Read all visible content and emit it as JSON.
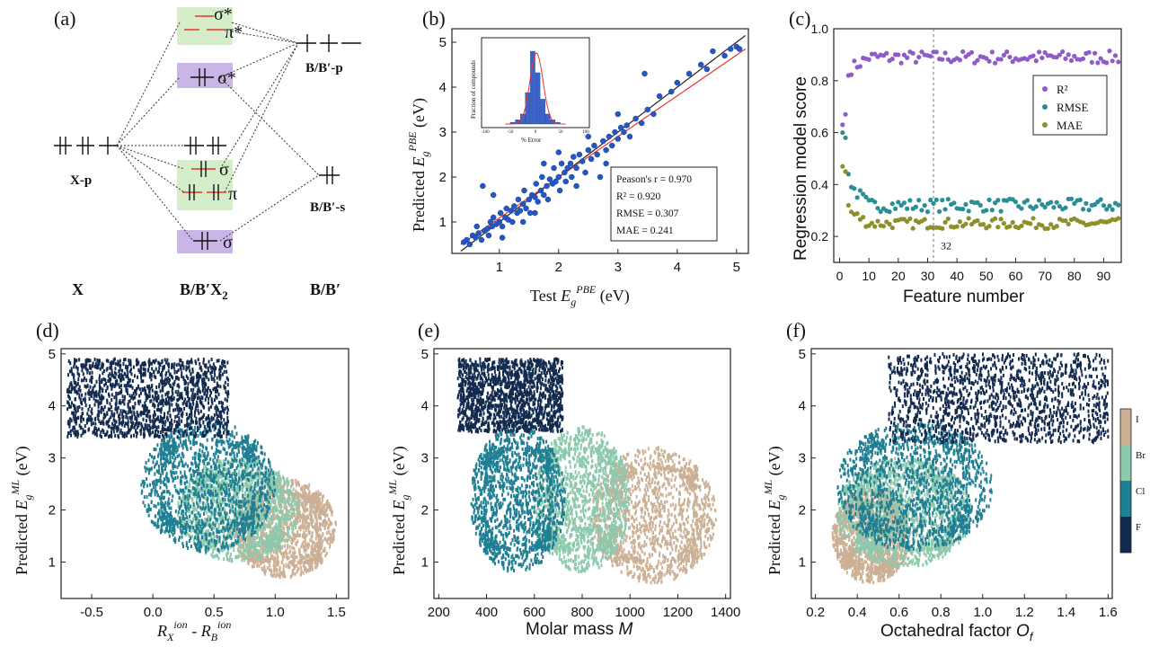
{
  "panel_labels": [
    "(a)",
    "(b)",
    "(c)",
    "(d)",
    "(e)",
    "(f)"
  ],
  "mo_diagram": {
    "col_x": "X",
    "col_bbx2": "B/B′X",
    "col_bbx2_sub": "2",
    "col_bb": "B/B′",
    "x_p": "X-p",
    "bb_p": "B/B′-p",
    "bb_s": "B/B′-s",
    "sigma_star_top": "σ*",
    "pi_star": "π*",
    "sigma_star_mid": "σ*",
    "sigma": "σ",
    "pi": "π",
    "sigma_bottom": "σ",
    "colors": {
      "red": "#e8352a",
      "purple": "#6a3fb5",
      "green_box": "#d5edc8",
      "purple_box": "#c9b6e6"
    }
  },
  "chart_data": [
    {
      "id": "b",
      "type": "scatter",
      "xlabel": "Test E_g^PBE (eV)",
      "ylabel": "Predicted E_g^PBE (eV)",
      "xlim": [
        0.2,
        5.2
      ],
      "ylim": [
        0.3,
        5.3
      ],
      "xticks": [
        1,
        2,
        3,
        4,
        5
      ],
      "yticks": [
        1,
        2,
        3,
        4,
        5
      ],
      "stats": [
        "Peason's r = 0.970",
        "R² = 0.920",
        "RMSE = 0.307",
        "MAE = 0.241"
      ],
      "lines": [
        {
          "name": "ideal",
          "color": "#222222"
        },
        {
          "name": "fit",
          "color": "#e8352a"
        }
      ],
      "point_color": "#2456c4",
      "points": [
        [
          0.4,
          0.55
        ],
        [
          0.45,
          0.6
        ],
        [
          0.5,
          0.5
        ],
        [
          0.55,
          0.7
        ],
        [
          0.6,
          0.65
        ],
        [
          0.62,
          0.9
        ],
        [
          0.65,
          0.75
        ],
        [
          0.7,
          0.6
        ],
        [
          0.72,
          1.8
        ],
        [
          0.75,
          0.8
        ],
        [
          0.8,
          0.85
        ],
        [
          0.82,
          0.7
        ],
        [
          0.85,
          1.0
        ],
        [
          0.88,
          0.9
        ],
        [
          0.9,
          1.1
        ],
        [
          0.95,
          0.95
        ],
        [
          1.0,
          1.0
        ],
        [
          1.02,
          1.2
        ],
        [
          1.05,
          0.9
        ],
        [
          1.1,
          1.1
        ],
        [
          1.12,
          1.3
        ],
        [
          1.15,
          1.05
        ],
        [
          1.2,
          1.25
        ],
        [
          1.22,
          1.0
        ],
        [
          1.25,
          1.35
        ],
        [
          1.3,
          1.2
        ],
        [
          1.32,
          1.5
        ],
        [
          1.35,
          1.25
        ],
        [
          1.4,
          1.4
        ],
        [
          1.42,
          1.7
        ],
        [
          1.45,
          1.3
        ],
        [
          1.5,
          1.5
        ],
        [
          1.52,
          1.2
        ],
        [
          1.55,
          1.6
        ],
        [
          1.6,
          1.55
        ],
        [
          1.62,
          1.85
        ],
        [
          1.65,
          1.45
        ],
        [
          1.7,
          1.7
        ],
        [
          1.72,
          2.0
        ],
        [
          1.75,
          1.6
        ],
        [
          1.8,
          1.8
        ],
        [
          1.82,
          1.5
        ],
        [
          1.85,
          1.95
        ],
        [
          1.9,
          1.85
        ],
        [
          1.92,
          2.2
        ],
        [
          1.95,
          1.9
        ],
        [
          2.0,
          2.0
        ],
        [
          2.02,
          1.7
        ],
        [
          2.05,
          2.3
        ],
        [
          2.1,
          2.1
        ],
        [
          2.12,
          1.9
        ],
        [
          2.15,
          2.2
        ],
        [
          2.2,
          2.3
        ],
        [
          2.22,
          2.0
        ],
        [
          2.25,
          2.45
        ],
        [
          2.3,
          2.2
        ],
        [
          2.35,
          2.5
        ],
        [
          2.4,
          2.35
        ],
        [
          2.45,
          2.1
        ],
        [
          2.5,
          2.6
        ],
        [
          2.55,
          2.4
        ],
        [
          2.6,
          2.7
        ],
        [
          2.65,
          2.5
        ],
        [
          2.7,
          2.0
        ],
        [
          2.75,
          2.8
        ],
        [
          2.8,
          2.6
        ],
        [
          2.85,
          2.9
        ],
        [
          2.9,
          2.7
        ],
        [
          2.95,
          3.0
        ],
        [
          3.0,
          2.85
        ],
        [
          3.05,
          3.1
        ],
        [
          3.1,
          3.0
        ],
        [
          3.15,
          3.15
        ],
        [
          3.2,
          2.9
        ],
        [
          3.3,
          3.3
        ],
        [
          3.4,
          3.2
        ],
        [
          3.45,
          4.3
        ],
        [
          3.5,
          3.5
        ],
        [
          3.6,
          3.4
        ],
        [
          3.7,
          3.8
        ],
        [
          3.9,
          3.9
        ],
        [
          4.0,
          4.1
        ],
        [
          4.2,
          4.3
        ],
        [
          4.4,
          4.5
        ],
        [
          4.5,
          4.4
        ],
        [
          4.6,
          4.8
        ],
        [
          4.8,
          4.7
        ],
        [
          4.9,
          4.85
        ],
        [
          5.0,
          4.9
        ],
        [
          5.05,
          4.85
        ],
        [
          0.9,
          1.6
        ],
        [
          1.05,
          0.65
        ],
        [
          1.4,
          1.0
        ],
        [
          1.6,
          1.2
        ],
        [
          1.75,
          2.3
        ],
        [
          2.0,
          2.55
        ],
        [
          2.3,
          1.8
        ],
        [
          2.5,
          2.9
        ],
        [
          2.8,
          2.3
        ],
        [
          3.0,
          3.4
        ]
      ],
      "inset": {
        "xlabel": "% Error",
        "ylabel": "Fraction of compounds",
        "xticks": [
          -100,
          -50,
          0,
          50,
          100
        ],
        "bins": [
          -45,
          -35,
          -25,
          -15,
          -5,
          5,
          15,
          25,
          35,
          45
        ],
        "values": [
          0.02,
          0.05,
          0.12,
          0.38,
          0.88,
          0.62,
          0.3,
          0.12,
          0.05,
          0.02
        ],
        "color": "#3b63c9"
      }
    },
    {
      "id": "c",
      "type": "scatter",
      "xlabel": "Feature number",
      "ylabel": "Regression model score",
      "xlim": [
        -2,
        96
      ],
      "ylim": [
        0.1,
        1.0
      ],
      "xticks": [
        0,
        10,
        20,
        30,
        40,
        50,
        60,
        70,
        80,
        90
      ],
      "yticks": [
        0.2,
        0.4,
        0.6,
        0.8,
        1.0
      ],
      "vline_x": 32,
      "vline_label": "32",
      "series": [
        {
          "name": "R²",
          "color": "#8e5bc9",
          "start": [
            0.63,
            0.67,
            0.82
          ],
          "level": 0.89,
          "spread": 0.025
        },
        {
          "name": "RMSE",
          "color": "#2a8f95",
          "start": [
            0.6,
            0.58,
            0.44
          ],
          "level": 0.32,
          "spread": 0.025
        },
        {
          "name": "MAE",
          "color": "#8e8f2b",
          "start": [
            0.47,
            0.45,
            0.32
          ],
          "level": 0.25,
          "spread": 0.02
        }
      ]
    },
    {
      "id": "d",
      "type": "scatter",
      "xlabel": "R_X^ion - R_B^ion",
      "ylabel": "Predicted E_g^ML (eV)",
      "xlim": [
        -0.75,
        1.6
      ],
      "ylim": [
        0.3,
        5.1
      ],
      "xticks": [
        -0.5,
        0.0,
        0.5,
        1.0,
        1.5
      ],
      "yticks": [
        1,
        2,
        3,
        4,
        5
      ],
      "clusters": [
        {
          "name": "F",
          "x": [
            -0.7,
            0.62
          ],
          "y": [
            3.4,
            4.9
          ]
        },
        {
          "name": "Cl",
          "x": [
            -0.1,
            1.0
          ],
          "y": [
            1.2,
            3.7
          ]
        },
        {
          "name": "Br",
          "x": [
            0.2,
            1.2
          ],
          "y": [
            1.0,
            3.0
          ]
        },
        {
          "name": "I",
          "x": [
            0.65,
            1.5
          ],
          "y": [
            0.7,
            2.6
          ]
        }
      ]
    },
    {
      "id": "e",
      "type": "scatter",
      "xlabel": "Molar mass M",
      "ylabel": "Predicted E_g^ML (eV)",
      "xlim": [
        180,
        1420
      ],
      "ylim": [
        0.3,
        5.1
      ],
      "xticks": [
        200,
        400,
        600,
        800,
        1000,
        1200,
        1400
      ],
      "yticks": [
        1,
        2,
        3,
        4,
        5
      ],
      "clusters": [
        {
          "name": "F",
          "x": [
            280,
            720
          ],
          "y": [
            3.5,
            4.9
          ]
        },
        {
          "name": "Cl",
          "x": [
            330,
            730
          ],
          "y": [
            0.8,
            3.6
          ]
        },
        {
          "name": "Br",
          "x": [
            600,
            1000
          ],
          "y": [
            0.8,
            3.6
          ]
        },
        {
          "name": "I",
          "x": [
            840,
            1360
          ],
          "y": [
            0.6,
            3.2
          ]
        }
      ]
    },
    {
      "id": "f",
      "type": "scatter",
      "xlabel": "Octahedral factor O_f",
      "ylabel": "Predicted E_g^ML (eV)",
      "xlim": [
        0.18,
        1.62
      ],
      "ylim": [
        0.3,
        5.1
      ],
      "xticks": [
        0.2,
        0.4,
        0.6,
        0.8,
        1.0,
        1.2,
        1.4,
        1.6
      ],
      "yticks": [
        1,
        2,
        3,
        4,
        5
      ],
      "clusters": [
        {
          "name": "F",
          "x": [
            0.55,
            1.6
          ],
          "y": [
            3.3,
            5.0
          ]
        },
        {
          "name": "Cl",
          "x": [
            0.3,
            1.05
          ],
          "y": [
            1.2,
            3.7
          ]
        },
        {
          "name": "Br",
          "x": [
            0.3,
            0.95
          ],
          "y": [
            0.9,
            3.0
          ]
        },
        {
          "name": "I",
          "x": [
            0.28,
            0.65
          ],
          "y": [
            0.6,
            2.4
          ]
        }
      ]
    }
  ],
  "colorbar": {
    "labels": [
      "I",
      "Br",
      "Cl",
      "F"
    ],
    "colors": [
      "#cbb095",
      "#8dc9ac",
      "#1f7f93",
      "#132a4f"
    ]
  }
}
